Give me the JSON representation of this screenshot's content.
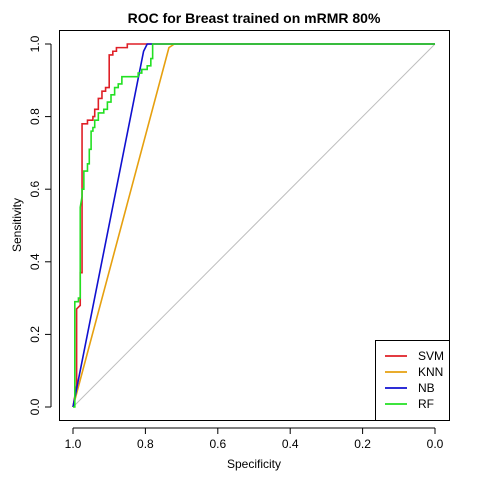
{
  "chart_data": {
    "type": "line",
    "title": "ROC for Breast trained on mRMR 80%",
    "xlabel": "Specificity",
    "ylabel": "Sensitivity",
    "xlim": [
      1.0,
      0.0
    ],
    "ylim": [
      0.0,
      1.0
    ],
    "x_reversed": true,
    "xticks": [
      "1.0",
      "0.8",
      "0.6",
      "0.4",
      "0.2",
      "0.0"
    ],
    "yticks": [
      "0.0",
      "0.2",
      "0.4",
      "0.6",
      "0.8",
      "1.0"
    ],
    "grid": false,
    "legend_position": "bottom-right",
    "reference_line": {
      "from": [
        1.0,
        0.0
      ],
      "to": [
        0.0,
        1.0
      ],
      "color": "#bebebe"
    },
    "series": [
      {
        "name": "SVM",
        "color": "#df1f26",
        "points": [
          [
            1.0,
            0.0
          ],
          [
            0.99,
            0.06
          ],
          [
            0.99,
            0.27
          ],
          [
            0.98,
            0.28
          ],
          [
            0.98,
            0.37
          ],
          [
            0.975,
            0.37
          ],
          [
            0.975,
            0.78
          ],
          [
            0.96,
            0.78
          ],
          [
            0.96,
            0.79
          ],
          [
            0.945,
            0.79
          ],
          [
            0.945,
            0.8
          ],
          [
            0.94,
            0.8
          ],
          [
            0.94,
            0.82
          ],
          [
            0.93,
            0.82
          ],
          [
            0.93,
            0.85
          ],
          [
            0.92,
            0.85
          ],
          [
            0.92,
            0.87
          ],
          [
            0.91,
            0.87
          ],
          [
            0.91,
            0.88
          ],
          [
            0.9,
            0.88
          ],
          [
            0.9,
            0.97
          ],
          [
            0.89,
            0.97
          ],
          [
            0.89,
            0.98
          ],
          [
            0.88,
            0.98
          ],
          [
            0.88,
            0.99
          ],
          [
            0.85,
            0.99
          ],
          [
            0.85,
            1.0
          ],
          [
            0.0,
            1.0
          ]
        ]
      },
      {
        "name": "KNN",
        "color": "#e6a00f",
        "points": [
          [
            1.0,
            0.0
          ],
          [
            0.735,
            0.99
          ],
          [
            0.72,
            1.0
          ],
          [
            0.0,
            1.0
          ]
        ]
      },
      {
        "name": "NB",
        "color": "#1010d0",
        "points": [
          [
            1.0,
            0.0
          ],
          [
            0.805,
            0.98
          ],
          [
            0.795,
            1.0
          ],
          [
            0.0,
            1.0
          ]
        ]
      },
      {
        "name": "RF",
        "color": "#22e022",
        "points": [
          [
            1.0,
            0.0
          ],
          [
            0.995,
            0.0
          ],
          [
            0.995,
            0.29
          ],
          [
            0.985,
            0.29
          ],
          [
            0.985,
            0.3
          ],
          [
            0.98,
            0.3
          ],
          [
            0.98,
            0.55
          ],
          [
            0.975,
            0.58
          ],
          [
            0.975,
            0.6
          ],
          [
            0.97,
            0.6
          ],
          [
            0.97,
            0.65
          ],
          [
            0.96,
            0.65
          ],
          [
            0.96,
            0.67
          ],
          [
            0.955,
            0.67
          ],
          [
            0.955,
            0.71
          ],
          [
            0.95,
            0.71
          ],
          [
            0.95,
            0.76
          ],
          [
            0.945,
            0.76
          ],
          [
            0.945,
            0.77
          ],
          [
            0.94,
            0.77
          ],
          [
            0.94,
            0.79
          ],
          [
            0.93,
            0.79
          ],
          [
            0.93,
            0.81
          ],
          [
            0.915,
            0.81
          ],
          [
            0.915,
            0.82
          ],
          [
            0.905,
            0.82
          ],
          [
            0.905,
            0.84
          ],
          [
            0.895,
            0.84
          ],
          [
            0.895,
            0.86
          ],
          [
            0.885,
            0.86
          ],
          [
            0.885,
            0.88
          ],
          [
            0.875,
            0.88
          ],
          [
            0.875,
            0.89
          ],
          [
            0.865,
            0.89
          ],
          [
            0.865,
            0.91
          ],
          [
            0.82,
            0.91
          ],
          [
            0.82,
            0.92
          ],
          [
            0.81,
            0.92
          ],
          [
            0.81,
            0.93
          ],
          [
            0.795,
            0.93
          ],
          [
            0.795,
            0.94
          ],
          [
            0.785,
            0.94
          ],
          [
            0.785,
            0.96
          ],
          [
            0.78,
            0.96
          ],
          [
            0.78,
            1.0
          ],
          [
            0.0,
            1.0
          ]
        ]
      }
    ]
  }
}
